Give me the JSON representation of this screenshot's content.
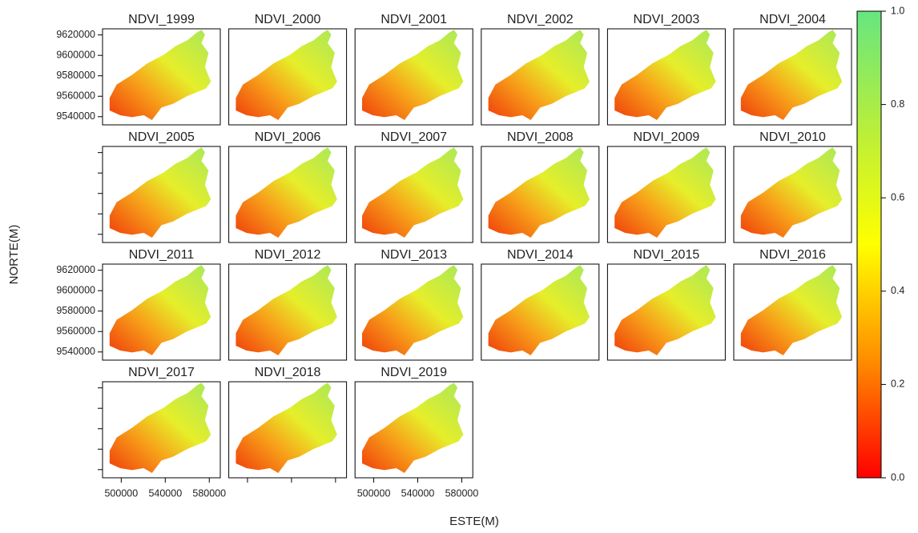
{
  "chart_data": {
    "type": "raster-grid",
    "panels": [
      "NDVI_1999",
      "NDVI_2000",
      "NDVI_2001",
      "NDVI_2002",
      "NDVI_2003",
      "NDVI_2004",
      "NDVI_2005",
      "NDVI_2006",
      "NDVI_2007",
      "NDVI_2008",
      "NDVI_2009",
      "NDVI_2010",
      "NDVI_2011",
      "NDVI_2012",
      "NDVI_2013",
      "NDVI_2014",
      "NDVI_2015",
      "NDVI_2016",
      "NDVI_2017",
      "NDVI_2018",
      "NDVI_2019"
    ],
    "xlabel": "ESTE(M)",
    "ylabel": "NORTE(M)",
    "xlim": [
      483000,
      590000
    ],
    "xticks": [
      500000,
      540000,
      580000
    ],
    "ylim": [
      9532000,
      9626000
    ],
    "yticks": [
      9540000,
      9560000,
      9580000,
      9600000,
      9620000
    ],
    "colorbar": {
      "lim": [
        0,
        1
      ],
      "ticks": [
        {
          "value": 0,
          "label": "0.0"
        },
        0.2,
        0.4,
        0.6,
        0.8,
        {
          "value": 1,
          "label": "1.0"
        }
      ],
      "colors": [
        "#ff0000",
        "#ff8c00",
        "#ffff00",
        "#b8ee3c",
        "#66e680"
      ]
    }
  }
}
